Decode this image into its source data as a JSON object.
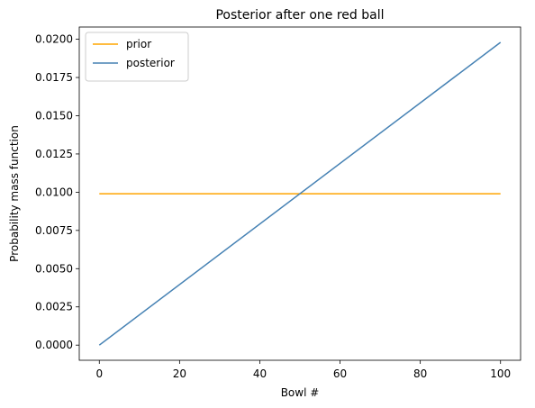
{
  "chart_data": {
    "type": "line",
    "title": "Posterior after one red ball",
    "xlabel": "Bowl #",
    "ylabel": "Probability mass function",
    "xlim": [
      -5,
      105
    ],
    "ylim": [
      -0.00099,
      0.0208
    ],
    "xticks": [
      0,
      20,
      40,
      60,
      80,
      100
    ],
    "yticks": [
      0.0,
      0.0025,
      0.005,
      0.0075,
      0.01,
      0.0125,
      0.015,
      0.0175,
      0.02
    ],
    "ytick_labels": [
      "0.0000",
      "0.0025",
      "0.0050",
      "0.0075",
      "0.0100",
      "0.0125",
      "0.0150",
      "0.0175",
      "0.0200"
    ],
    "grid": false,
    "legend": "top-left",
    "series": [
      {
        "name": "prior",
        "color": "#ffa500",
        "x": [
          0,
          100
        ],
        "y": [
          0.0099,
          0.0099
        ]
      },
      {
        "name": "posterior",
        "color": "#4682b4",
        "x": [
          0,
          100
        ],
        "y": [
          0.0,
          0.0198
        ]
      }
    ]
  }
}
